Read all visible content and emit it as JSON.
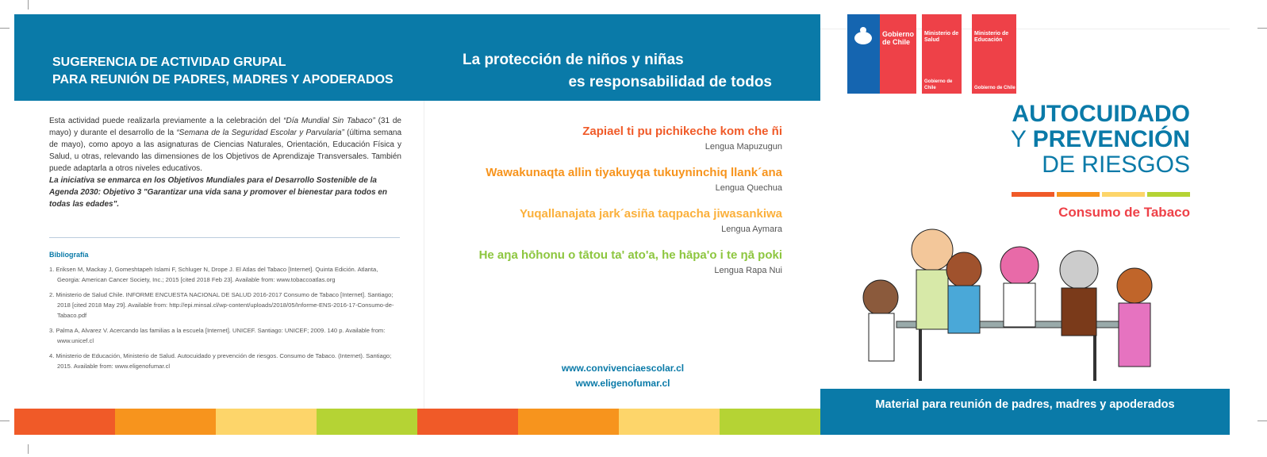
{
  "header": {
    "left_title_line1": "SUGERENCIA DE ACTIVIDAD GRUPAL",
    "left_title_line2": "PARA REUNIÓN DE PADRES, MADRES Y APODERADOS",
    "center_title_line1": "La protección de niños y niñas",
    "center_title_line2": "es responsabilidad de todos"
  },
  "intro": {
    "p1a": "Esta actividad puede realizarla previamente a la celebración del ",
    "p1b": "“Día Mundial Sin Tabaco”",
    "p1c": " (31 de mayo) y durante el desarrollo de la ",
    "p1d": "“Semana de la Seguridad Escolar y Parvularia”",
    "p1e": " (última semana de mayo), como apoyo a las asignaturas de Ciencias Naturales, Orientación, Educación Física y Salud, u otras, relevando las dimensiones de los Objetivos de Aprendizaje Transversales. También puede adaptarla a otros niveles educativos.",
    "p2": "La iniciativa se enmarca en los Objetivos Mundiales para el Desarrollo Sostenible de la Agenda 2030: Objetivo 3 \"Garantizar una vida sana y promover el bienestar para todos en todas las edades\"."
  },
  "bibliography": {
    "heading": "Bibliografía",
    "items": [
      "1. Eriksen M, Mackay J, Gomeshtapeh Islami F, Schluger N, Drope J. El Atlas del Tabaco [Internet]. Quinta Edición. Atlanta, Georgia: American Cancer Society, Inc.; 2015 [cited 2018 Feb 23]. Available from: www.tobaccoatlas.org",
      "2. Ministerio de Salud Chile. INFORME ENCUESTA NACIONAL DE SALUD 2016-2017 Consumo de Tabaco [Internet]. Santiago; 2018 [cited 2018 May 29]. Available from: http://epi.minsal.cl/wp-content/uploads/2018/05/Informe-ENS-2016-17-Consumo-de-Tabaco.pdf",
      "3. Palma A, Alvarez V. Acercando las familias a la escuela [Internet]. UNICEF. Santiago: UNICEF; 2009. 140 p. Available from: www.unicef.cl",
      "4. Ministerio de Educación, Ministerio de Salud. Autocuidado y prevención de riesgos. Consumo de Tabaco. (Internet). Santiago; 2015. Available from: www.eligenofumar.cl"
    ]
  },
  "languages": [
    {
      "phrase": "Zapiael ti pu pichikeche kom che ñi",
      "name": "Lengua Mapuzugun",
      "color": "#f05a28"
    },
    {
      "phrase": "Wawakunaqta allin tiyakuyqa tukuyninchiq llank´ana",
      "name": "Lengua Quechua",
      "color": "#f7941d"
    },
    {
      "phrase": "Yuqallanajata jark´asiña taqpacha jiwasankiwa",
      "name": "Lengua Aymara",
      "color": "#fbb03b"
    },
    {
      "phrase": "He aŋa hōhonu o tātou ta' ato'a, he hāpa'o i te ŋā poki",
      "name": "Lengua Rapa Nui",
      "color": "#8dc63f"
    }
  ],
  "links": [
    "www.convivenciaescolar.cl",
    "www.eligenofumar.cl"
  ],
  "logos": {
    "gob": "Gobierno de Chile",
    "salud": "Ministerio de Salud",
    "educacion": "Ministerio de Educación",
    "sub": "Gobierno de Chile"
  },
  "cover": {
    "line1": "AUTOCUIDADO",
    "line2a": "Y ",
    "line2b": "PREVENCIÓN",
    "line3": "DE RIESGOS",
    "subtitle": "Consumo de Tabaco",
    "footer": "Material para reunión de padres, madres y apoderados"
  },
  "colors": {
    "blue": "#0a7aa8",
    "red": "#ee4148",
    "stripes": [
      "#f05a28",
      "#f7941d",
      "#fdd56a",
      "#b5d334"
    ]
  }
}
